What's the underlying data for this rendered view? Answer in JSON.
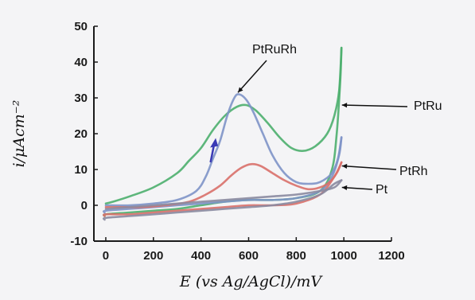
{
  "chart_data": {
    "type": "line",
    "xlabel": "E (vs Ag/AgCl)/mV",
    "ylabel": "i/μAcm⁻²",
    "xlim": [
      -50,
      1200
    ],
    "ylim": [
      -10,
      50
    ],
    "xticks": [
      0,
      200,
      400,
      600,
      800,
      1000,
      1200
    ],
    "yticks": [
      -10,
      0,
      10,
      20,
      30,
      40,
      50
    ],
    "grid": false,
    "legend": "none",
    "annotations": [
      {
        "text": "PtRuRh",
        "series": "PtRuRh"
      },
      {
        "text": "PtRu",
        "series": "PtRu"
      },
      {
        "text": "PtRh",
        "series": "PtRh"
      },
      {
        "text": "Pt",
        "series": "Pt"
      }
    ],
    "series": [
      {
        "name": "PtRu",
        "color": "#4caf6e",
        "forward": [
          [
            -5,
            -3
          ],
          [
            0,
            -2.5
          ],
          [
            100,
            -2
          ],
          [
            200,
            -1.5
          ],
          [
            300,
            -1
          ],
          [
            400,
            0
          ],
          [
            500,
            1
          ],
          [
            600,
            1.5
          ],
          [
            700,
            1.5
          ],
          [
            800,
            2
          ],
          [
            900,
            4
          ],
          [
            950,
            10
          ],
          [
            970,
            20
          ],
          [
            985,
            35
          ],
          [
            990,
            44
          ]
        ],
        "reverse": [
          [
            990,
            44
          ],
          [
            980,
            32
          ],
          [
            960,
            25
          ],
          [
            930,
            20
          ],
          [
            880,
            16.5
          ],
          [
            830,
            15.2
          ],
          [
            780,
            16
          ],
          [
            730,
            19
          ],
          [
            680,
            23
          ],
          [
            630,
            26.5
          ],
          [
            590,
            28
          ],
          [
            550,
            27.5
          ],
          [
            500,
            25
          ],
          [
            450,
            21
          ],
          [
            400,
            16
          ],
          [
            350,
            12.5
          ],
          [
            300,
            9
          ],
          [
            200,
            5
          ],
          [
            100,
            2.5
          ],
          [
            30,
            1
          ],
          [
            0,
            0.5
          ]
        ]
      },
      {
        "name": "PtRuRh",
        "color": "#7e94c8",
        "forward": [
          [
            -5,
            -2
          ],
          [
            0,
            -1.5
          ],
          [
            100,
            -1
          ],
          [
            200,
            -0.5
          ],
          [
            300,
            0
          ],
          [
            400,
            0.5
          ],
          [
            500,
            1
          ],
          [
            600,
            1.5
          ],
          [
            700,
            1.5
          ],
          [
            800,
            2
          ],
          [
            900,
            4
          ],
          [
            950,
            8
          ],
          [
            980,
            14
          ],
          [
            990,
            19
          ]
        ],
        "reverse": [
          [
            990,
            19
          ],
          [
            975,
            13
          ],
          [
            950,
            9
          ],
          [
            900,
            6.5
          ],
          [
            850,
            6
          ],
          [
            800,
            6.5
          ],
          [
            750,
            9
          ],
          [
            700,
            14
          ],
          [
            660,
            20
          ],
          [
            620,
            26
          ],
          [
            590,
            29.5
          ],
          [
            560,
            31
          ],
          [
            540,
            30
          ],
          [
            510,
            25
          ],
          [
            480,
            18
          ],
          [
            450,
            13
          ],
          [
            420,
            8
          ],
          [
            380,
            4
          ],
          [
            300,
            1.5
          ],
          [
            200,
            0.5
          ],
          [
            100,
            0
          ],
          [
            0,
            0
          ]
        ]
      },
      {
        "name": "PtRh",
        "color": "#d9706a",
        "forward": [
          [
            -5,
            -3
          ],
          [
            0,
            -2.5
          ],
          [
            100,
            -2.5
          ],
          [
            200,
            -2
          ],
          [
            300,
            -1.5
          ],
          [
            400,
            -1
          ],
          [
            500,
            -0.5
          ],
          [
            600,
            0
          ],
          [
            700,
            0
          ],
          [
            800,
            0.5
          ],
          [
            900,
            3
          ],
          [
            960,
            8
          ],
          [
            990,
            12
          ]
        ],
        "reverse": [
          [
            990,
            12
          ],
          [
            970,
            9
          ],
          [
            940,
            6.5
          ],
          [
            900,
            5
          ],
          [
            850,
            4.5
          ],
          [
            800,
            5.5
          ],
          [
            750,
            7
          ],
          [
            700,
            9
          ],
          [
            650,
            11
          ],
          [
            610,
            11.5
          ],
          [
            570,
            10.5
          ],
          [
            530,
            8.5
          ],
          [
            480,
            5.5
          ],
          [
            420,
            3
          ],
          [
            350,
            1
          ],
          [
            250,
            0
          ],
          [
            150,
            -0.5
          ],
          [
            50,
            -0.5
          ],
          [
            0,
            -0.5
          ]
        ]
      },
      {
        "name": "Pt",
        "color": "#8a8aa0",
        "forward": [
          [
            -5,
            -4
          ],
          [
            0,
            -3.5
          ],
          [
            100,
            -3
          ],
          [
            200,
            -2.5
          ],
          [
            300,
            -2
          ],
          [
            400,
            -1.5
          ],
          [
            500,
            -1
          ],
          [
            600,
            -0.5
          ],
          [
            700,
            0
          ],
          [
            800,
            1
          ],
          [
            900,
            3
          ],
          [
            960,
            6
          ],
          [
            990,
            7
          ]
        ],
        "reverse": [
          [
            990,
            7
          ],
          [
            960,
            5
          ],
          [
            900,
            4
          ],
          [
            800,
            3
          ],
          [
            700,
            2.5
          ],
          [
            600,
            2
          ],
          [
            500,
            1.5
          ],
          [
            400,
            1
          ],
          [
            300,
            0.5
          ],
          [
            200,
            0
          ],
          [
            100,
            -0.5
          ],
          [
            0,
            -1
          ]
        ]
      }
    ]
  }
}
